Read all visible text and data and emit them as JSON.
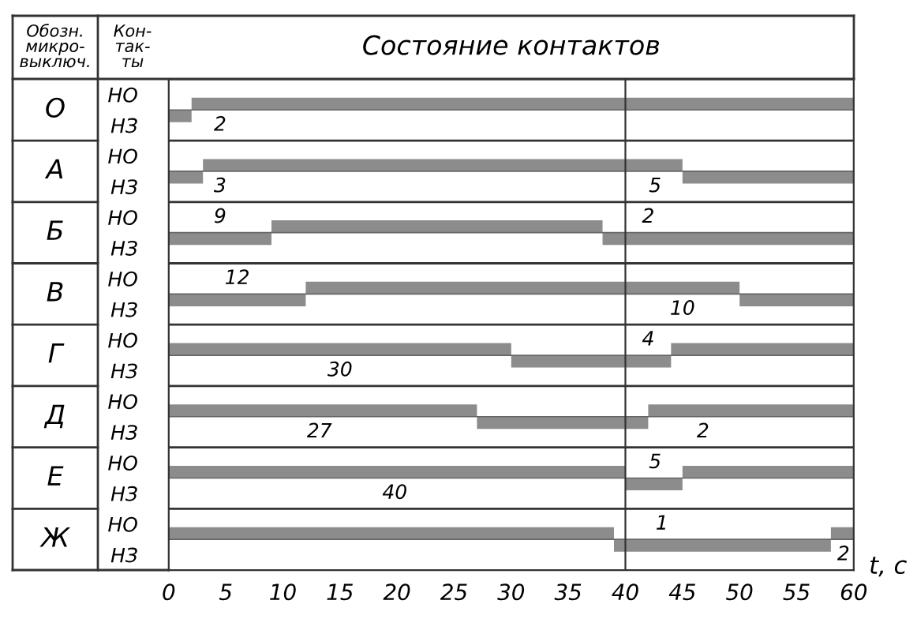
{
  "chart_data": {
    "type": "bar",
    "orientation": "horizontal",
    "title": "Состояние контактов",
    "ylabel": "Кон-так-ты",
    "xlabel": "t, c",
    "categories": [
      "НО",
      "НЗ",
      "НО",
      "НЗ",
      "НО",
      "НЗ",
      "НО",
      "НЗ",
      "НО",
      "НЗ",
      "НО",
      "НЗ",
      "НО",
      "НЗ",
      "НО",
      "НЗ"
    ],
    "series": [
      {
        "color": "#8c8c8c",
        "base": [
          2,
          0,
          3,
          0,
          9,
          0,
          12,
          0,
          0,
          30,
          0,
          27,
          0,
          40,
          0,
          39
        ],
        "values": [
          58,
          2,
          42,
          3,
          29,
          9,
          38,
          12,
          30,
          14,
          27,
          15,
          40,
          5,
          39,
          19
        ]
      },
      {
        "color": "#8c8c8c",
        "base": [
          null,
          null,
          null,
          45,
          null,
          38,
          null,
          50,
          44,
          null,
          42,
          null,
          45,
          null,
          58,
          null
        ],
        "values": [
          null,
          null,
          null,
          15,
          null,
          22,
          null,
          10,
          16,
          null,
          18,
          null,
          15,
          null,
          2,
          null
        ]
      }
    ],
    "xlim": [
      0,
      60
    ],
    "xticks": [
      0,
      5,
      10,
      15,
      20,
      25,
      30,
      35,
      40,
      45,
      50,
      55,
      60
    ],
    "ref_lines": [
      {
        "axis": "x",
        "value": 40,
        "color": "#333333"
      }
    ],
    "annotations": [
      "Обозн. микро- выключ.",
      "О",
      "А",
      "Б",
      "В",
      "Г",
      "Д",
      "Е",
      "Ж",
      "2",
      "3",
      "5",
      "9",
      "2",
      "12",
      "10",
      "4",
      "30",
      "27",
      "2",
      "5",
      "40",
      "1",
      "2"
    ],
    "grid": false,
    "legend": false
  }
}
